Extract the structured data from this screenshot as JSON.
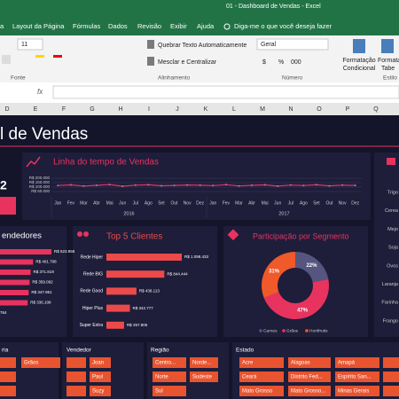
{
  "window": {
    "title": "01 - Dashboard de Vendas  -  Excel",
    "tabs": [
      "a",
      "Layout da Página",
      "Fórmulas",
      "Dados",
      "Revisão",
      "Exibir",
      "Ajuda"
    ],
    "tell_me": "Diga-me o que você deseja fazer"
  },
  "ribbon": {
    "font_size": "11",
    "wrap_text": "Quebrar Texto Automaticamente",
    "merge": "Mesclar e Centralizar",
    "number_format": "Geral",
    "number_symbols": [
      "$",
      "%",
      "000"
    ],
    "conditional": [
      "Formatação",
      "Condicional"
    ],
    "format_table": [
      "Formata",
      "Tabe"
    ],
    "groups": [
      "Fonte",
      "Alinhamento",
      "Número",
      "Estilo"
    ],
    "fx": "fx"
  },
  "columns": [
    "D",
    "E",
    "F",
    "G",
    "H",
    "I",
    "J",
    "K",
    "L",
    "M",
    "N",
    "O",
    "P",
    "Q"
  ],
  "dashboard": {
    "title": "l de Vendas",
    "kpi": "2",
    "cut_label": "764",
    "products": [
      "Trigo",
      "Cerea",
      "Mejo",
      "Soja",
      "Ovos",
      "Laranja",
      "Farinha",
      "Frango"
    ]
  },
  "charts": [
    {
      "type": "line",
      "title": "Linha do tempo de Vendas",
      "categories": [
        "Jan",
        "Fev",
        "Mar",
        "Abr",
        "Mai",
        "Jun",
        "Jul",
        "Ago",
        "Set",
        "Out",
        "Nov",
        "Dez",
        "Jan",
        "Fev",
        "Mar",
        "Abr",
        "Mai",
        "Jun",
        "Jul",
        "Ago",
        "Set",
        "Out",
        "Nov",
        "Dez"
      ],
      "groups": [
        "2016",
        "2017"
      ],
      "values": [
        118000,
        125000,
        112000,
        120000,
        128000,
        110000,
        122000,
        126000,
        115000,
        119000,
        124000,
        121000,
        117000,
        127000,
        113000,
        120000,
        125000,
        111000,
        123000,
        118000,
        126000,
        114000,
        122000,
        119000
      ],
      "color": "#e8335f",
      "ylim": [
        50000,
        200000
      ],
      "yticks": [
        {
          "value": 50000,
          "label": "R$ 50.000"
        },
        {
          "value": 100000,
          "label": "R$ 100.000"
        },
        {
          "value": 150000,
          "label": "R$ 150.000"
        },
        {
          "value": 200000,
          "label": "R$ 200.000"
        }
      ],
      "grid": true
    },
    {
      "type": "barh",
      "title": "endedores",
      "values": [
        623958,
        401708,
        371819,
        359092,
        347951,
        336108
      ],
      "value_labels": [
        "R$ 623.958",
        "R$ 401.708",
        "R$ 371.819",
        "R$ 359.092",
        "R$ 347.951",
        "R$ 336.108"
      ],
      "color": "#e8335f"
    },
    {
      "type": "barh",
      "title": "Top 5 Clientes",
      "categories": [
        "Rede Hiper",
        "Rede BIG",
        "Rede Good",
        "Hiper Plus",
        "Super Extra"
      ],
      "values": [
        1098433,
        844444,
        438113,
        342777,
        257805
      ],
      "value_labels": [
        "R$ 1.098.433",
        "R$ 844.444",
        "R$ 438.113",
        "R$ 342.777",
        "R$ 257.805"
      ],
      "color": "#ec4a4a"
    },
    {
      "type": "donut",
      "title": "Participação por Segmento",
      "categories": [
        "Carnes",
        "Grãos",
        "Hortifrutis"
      ],
      "values": [
        22,
        47,
        31
      ],
      "value_labels": [
        "22%",
        "47%",
        "31%"
      ],
      "colors": [
        "#55557f",
        "#e8335f",
        "#f0592a"
      ]
    }
  ],
  "slicers": [
    {
      "title": "ria",
      "items": [
        "Grãos"
      ]
    },
    {
      "title": "Vendedor",
      "items": [
        "Joan",
        "Paul",
        "Suzy"
      ]
    },
    {
      "title": "Região",
      "items": [
        "Centro...",
        "Norde...",
        "Norte",
        "Sudeste",
        "Sul"
      ]
    },
    {
      "title": "Estado",
      "items": [
        "Acre",
        "Alagoas",
        "Amapá",
        "Ceará",
        "Distrito Fed...",
        "Espírito San...",
        "Mato Grosso",
        "Mato Grosso...",
        "Minas Gerais"
      ]
    }
  ]
}
